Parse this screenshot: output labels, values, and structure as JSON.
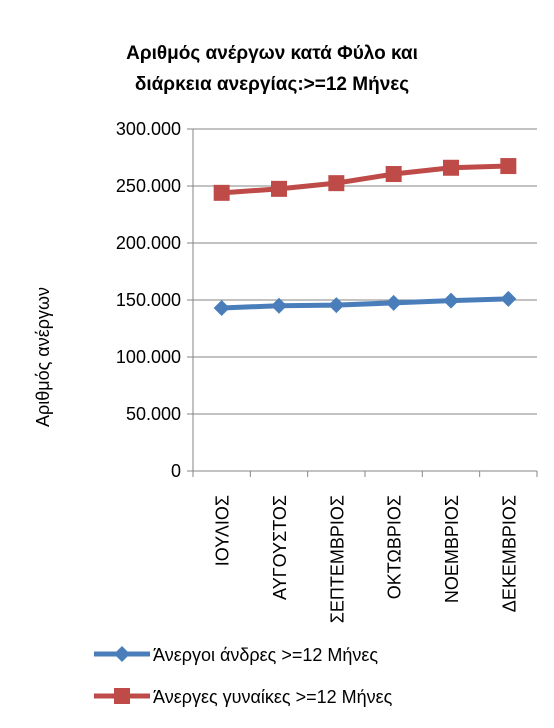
{
  "chart_data": {
    "type": "line",
    "title_lines": [
      "Αριθμός ανέργων κατά Φύλο και",
      "διάρκεια ανεργίας:>=12 Μήνες"
    ],
    "xlabel": "",
    "ylabel": "Αριθμός ανέργων",
    "categories": [
      "ΙΟΥΛΙΟΣ",
      "ΑΥΓΟΥΣΤΟΣ",
      "ΣΕΠΤΕΜΒΡΙΟΣ",
      "ΟΚΤΩΒΡΙΟΣ",
      "ΝΟΕΜΒΡΙΟΣ",
      "ΔΕΚΕΜΒΡΙΟΣ"
    ],
    "ylim": [
      0,
      300000
    ],
    "yticks": [
      0,
      50000,
      100000,
      150000,
      200000,
      250000,
      300000
    ],
    "ytick_labels": [
      "0",
      "50.000",
      "100.000",
      "150.000",
      "200.000",
      "250.000",
      "300.000"
    ],
    "grid": "horizontal major",
    "legend_position": "bottom",
    "series": [
      {
        "name": "Άνεργοι άνδρες >=12 Μήνες",
        "marker": "diamond",
        "color": "#4a7ebb",
        "values": [
          143000,
          145000,
          145500,
          147500,
          149500,
          151000
        ]
      },
      {
        "name": "Άνεργες γυναίκες >=12 Μήνες",
        "marker": "square",
        "color": "#be4b48",
        "values": [
          244000,
          247500,
          252500,
          260500,
          266000,
          267500
        ]
      }
    ]
  },
  "colors": {
    "background": "#ffffff",
    "plot_background": "#ffffff",
    "gridline": "#868686",
    "axis": "#868686"
  }
}
